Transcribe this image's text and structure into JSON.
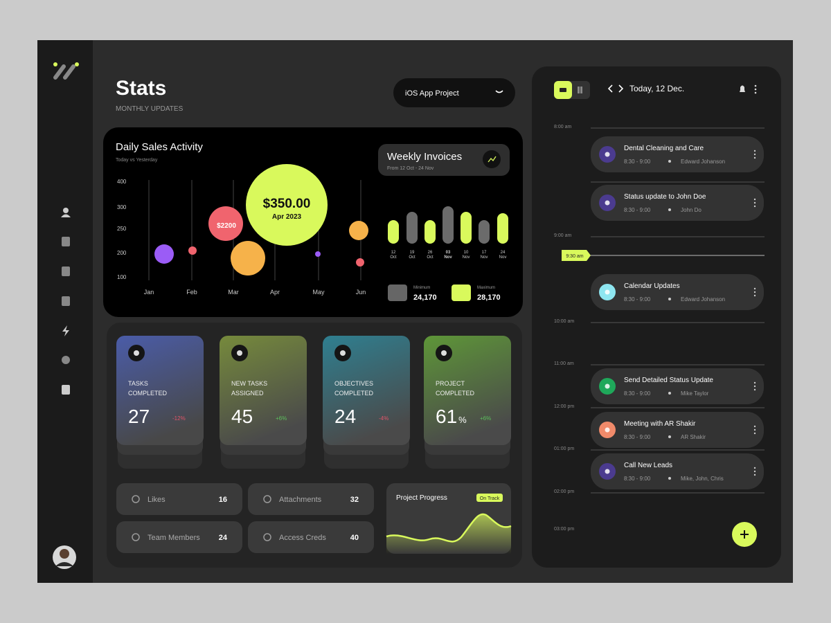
{
  "header": {
    "title": "Stats",
    "subtitle": "MONTHLY UPDATES",
    "project_select": "iOS App Project"
  },
  "daily_sales": {
    "title": "Daily Sales Activity",
    "subtitle": "Today vs Yesterday",
    "y_labels": [
      400,
      300,
      250,
      200,
      100
    ],
    "months": [
      "Jan",
      "Feb",
      "Mar",
      "Apr",
      "May",
      "Jun"
    ],
    "bubble_labels": {
      "mar": "$2200",
      "apr_value": "$350.00",
      "apr_date": "Apr 2023"
    }
  },
  "weekly_invoices": {
    "title": "Weekly Invoices",
    "subtitle": "From 12 Oct - 24 Nov",
    "categories": [
      {
        "day": "12",
        "month": "Oct"
      },
      {
        "day": "19",
        "month": "Oct"
      },
      {
        "day": "26",
        "month": "Oct"
      },
      {
        "day": "03",
        "month": "Nov"
      },
      {
        "day": "10",
        "month": "Nov"
      },
      {
        "day": "17",
        "month": "Nov"
      },
      {
        "day": "24",
        "month": "Nov"
      }
    ],
    "values": [
      34,
      46,
      34,
      54,
      46,
      34,
      44
    ],
    "colors": [
      "#d9f95c",
      "#6b6b6b",
      "#d9f95c",
      "#6b6b6b",
      "#d9f95c",
      "#6b6b6b",
      "#d9f95c"
    ],
    "minimum": {
      "label": "Minimum",
      "value": "24,170"
    },
    "maximum": {
      "label": "Maximum",
      "value": "28,170"
    }
  },
  "stat_cards": [
    {
      "label": [
        "TASKS",
        "COMPLETED"
      ],
      "value": 27,
      "change": "-12%"
    },
    {
      "label": [
        "NEW TASKS",
        "ASSIGNED"
      ],
      "value": 45,
      "change": "+6%"
    },
    {
      "label": [
        "OBJECTIVES",
        "COMPLETED"
      ],
      "value": 24,
      "change": "-4%"
    },
    {
      "label": [
        "PROJECT",
        "COMPLETED"
      ],
      "value": 61,
      "unit": "%",
      "change": "+6%"
    }
  ],
  "tiles": [
    {
      "label": "Likes",
      "value": 16
    },
    {
      "label": "Team Members",
      "value": 24
    },
    {
      "label": "Attachments",
      "value": 32
    },
    {
      "label": "Access Creds",
      "value": 40
    }
  ],
  "project_progress": {
    "title": "Project Progress",
    "status": "On Track"
  },
  "calendar": {
    "date": "Today, 12 Dec.",
    "times": [
      "8:00 am",
      "9:00 am",
      "10:00 am",
      "11:00 am",
      "12:00 pm",
      "01:00 pm",
      "02:00 pm",
      "03:00 pm"
    ],
    "current_time": "9:30 am",
    "events": [
      {
        "title": "Dental Cleaning and Care",
        "time": "8:30 - 9:00",
        "people": "Edward Johanson"
      },
      {
        "title": "Status update to John Doe",
        "time": "8:30 - 9:00",
        "people": "John Do"
      },
      {
        "title": "Calendar Updates",
        "time": "8:30 - 9:00",
        "people": "Edward Johanson"
      },
      {
        "title": "Send Detailed Status Update",
        "time": "8:30 - 9:00",
        "people": "Mike Taylor"
      },
      {
        "title": "Meeting with AR Shakir",
        "time": "8:30 - 9:00",
        "people": "AR Shakir"
      },
      {
        "title": "Call New Leads",
        "time": "8:30 - 9:00",
        "people": "Mike, John, Chris"
      }
    ]
  }
}
